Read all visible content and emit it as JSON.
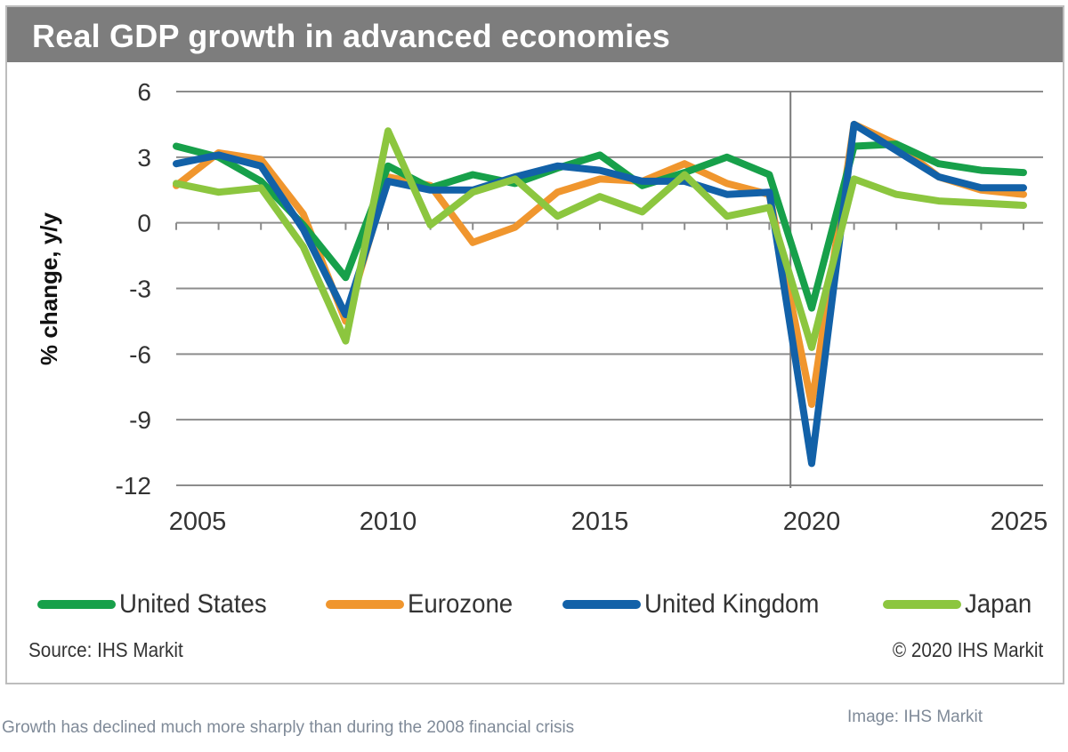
{
  "title": "Real GDP growth in advanced economies",
  "source": "Source: IHS Markit",
  "copyright": "© 2020 IHS Markit",
  "caption": "Growth has declined much more sharply than during the 2008 financial crisis",
  "image_credit": "Image: IHS Markit",
  "chart_data": {
    "type": "line",
    "title": "Real GDP growth in advanced economies",
    "xlabel": "",
    "ylabel": "% change, y/y",
    "ylim": [
      -12,
      6
    ],
    "yticks": [
      6,
      3,
      0,
      -3,
      -6,
      -9,
      -12
    ],
    "xlim": [
      2005,
      2025
    ],
    "xtick_labels": [
      "2005",
      "2010",
      "2015",
      "2020",
      "2025"
    ],
    "grid": true,
    "legend_position": "bottom",
    "vertical_marker_year": 2019.5,
    "x": [
      2005,
      2006,
      2007,
      2008,
      2009,
      2010,
      2011,
      2012,
      2013,
      2014,
      2015,
      2016,
      2017,
      2018,
      2019,
      2020,
      2021,
      2022,
      2023,
      2024,
      2025
    ],
    "series": [
      {
        "name": "Eurozone",
        "color": "#f0962e",
        "values": [
          1.7,
          3.2,
          2.9,
          0.4,
          -4.5,
          2.1,
          1.7,
          -0.9,
          -0.2,
          1.4,
          2.0,
          1.9,
          2.7,
          1.8,
          1.3,
          -8.3,
          4.5,
          3.6,
          2.1,
          1.5,
          1.3
        ]
      },
      {
        "name": "United States",
        "color": "#17a04a",
        "values": [
          3.5,
          3.0,
          1.9,
          -0.1,
          -2.5,
          2.6,
          1.6,
          2.2,
          1.8,
          2.5,
          3.1,
          1.7,
          2.3,
          3.0,
          2.2,
          -3.9,
          3.5,
          3.6,
          2.7,
          2.4,
          2.3
        ]
      },
      {
        "name": "United Kingdom",
        "color": "#1261a8",
        "values": [
          2.7,
          3.1,
          2.6,
          -0.3,
          -4.2,
          1.9,
          1.5,
          1.5,
          2.1,
          2.6,
          2.4,
          1.9,
          1.9,
          1.3,
          1.4,
          -11.0,
          4.5,
          3.3,
          2.1,
          1.6,
          1.6
        ]
      },
      {
        "name": "Japan",
        "color": "#8cc63f",
        "values": [
          1.8,
          1.4,
          1.6,
          -1.1,
          -5.4,
          4.2,
          -0.1,
          1.4,
          2.0,
          0.3,
          1.2,
          0.5,
          2.2,
          0.3,
          0.7,
          -5.7,
          2.0,
          1.3,
          1.0,
          0.9,
          0.8
        ]
      }
    ],
    "legend": [
      {
        "name": "United States",
        "color": "#17a04a"
      },
      {
        "name": "Eurozone",
        "color": "#f0962e"
      },
      {
        "name": "United Kingdom",
        "color": "#1261a8"
      },
      {
        "name": "Japan",
        "color": "#8cc63f"
      }
    ]
  }
}
